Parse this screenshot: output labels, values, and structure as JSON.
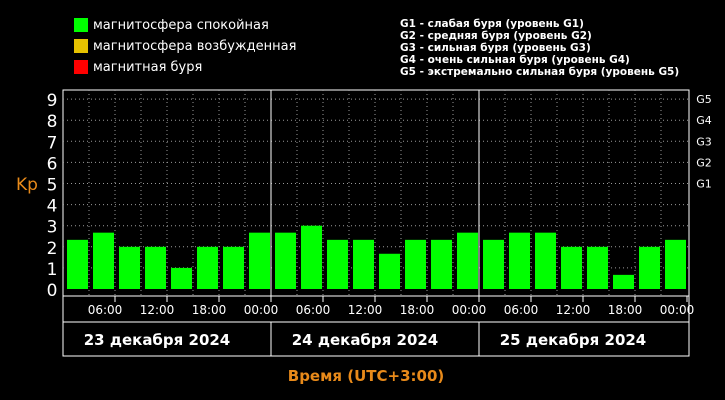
{
  "legend": {
    "items": [
      {
        "label": "магнитосфера спокойная",
        "color": "#00ff00"
      },
      {
        "label": "магнитосфера возбужденная",
        "color": "#e6c200"
      },
      {
        "label": "магнитная буря",
        "color": "#ff0000"
      }
    ],
    "storm_levels": [
      "G1 - слабая буря (уровень G1)",
      "G2 - средняя буря (уровень G2)",
      "G3 - сильная буря (уровень G3)",
      "G4 - очень сильная буря (уровень G4)",
      "G5 - экстремально сильная буря (уровень G5)"
    ]
  },
  "chart_data": {
    "type": "bar",
    "ylabel": "Kp",
    "xlabel": "Время (UTC+3:00)",
    "ylim": [
      0,
      9
    ],
    "yticks": [
      "0",
      "1",
      "2",
      "3",
      "4",
      "5",
      "6",
      "7",
      "8",
      "9"
    ],
    "g_levels": [
      "G1",
      "G2",
      "G3",
      "G4",
      "G5"
    ],
    "x_tick_labels": [
      "06:00",
      "12:00",
      "18:00",
      "00:00",
      "06:00",
      "12:00",
      "18:00",
      "00:00",
      "06:00",
      "12:00",
      "18:00",
      "00:00"
    ],
    "days": [
      "23 декабря 2024",
      "24 декабря 2024",
      "25 декабря 2024"
    ],
    "bar_color": "#00ff00",
    "values": [
      2.33,
      2.67,
      2.0,
      2.0,
      1.0,
      2.0,
      2.0,
      2.67,
      2.67,
      3.0,
      2.33,
      2.33,
      1.67,
      2.33,
      2.33,
      2.67,
      2.33,
      2.67,
      2.67,
      2.0,
      2.0,
      0.67,
      2.0,
      2.33
    ]
  }
}
